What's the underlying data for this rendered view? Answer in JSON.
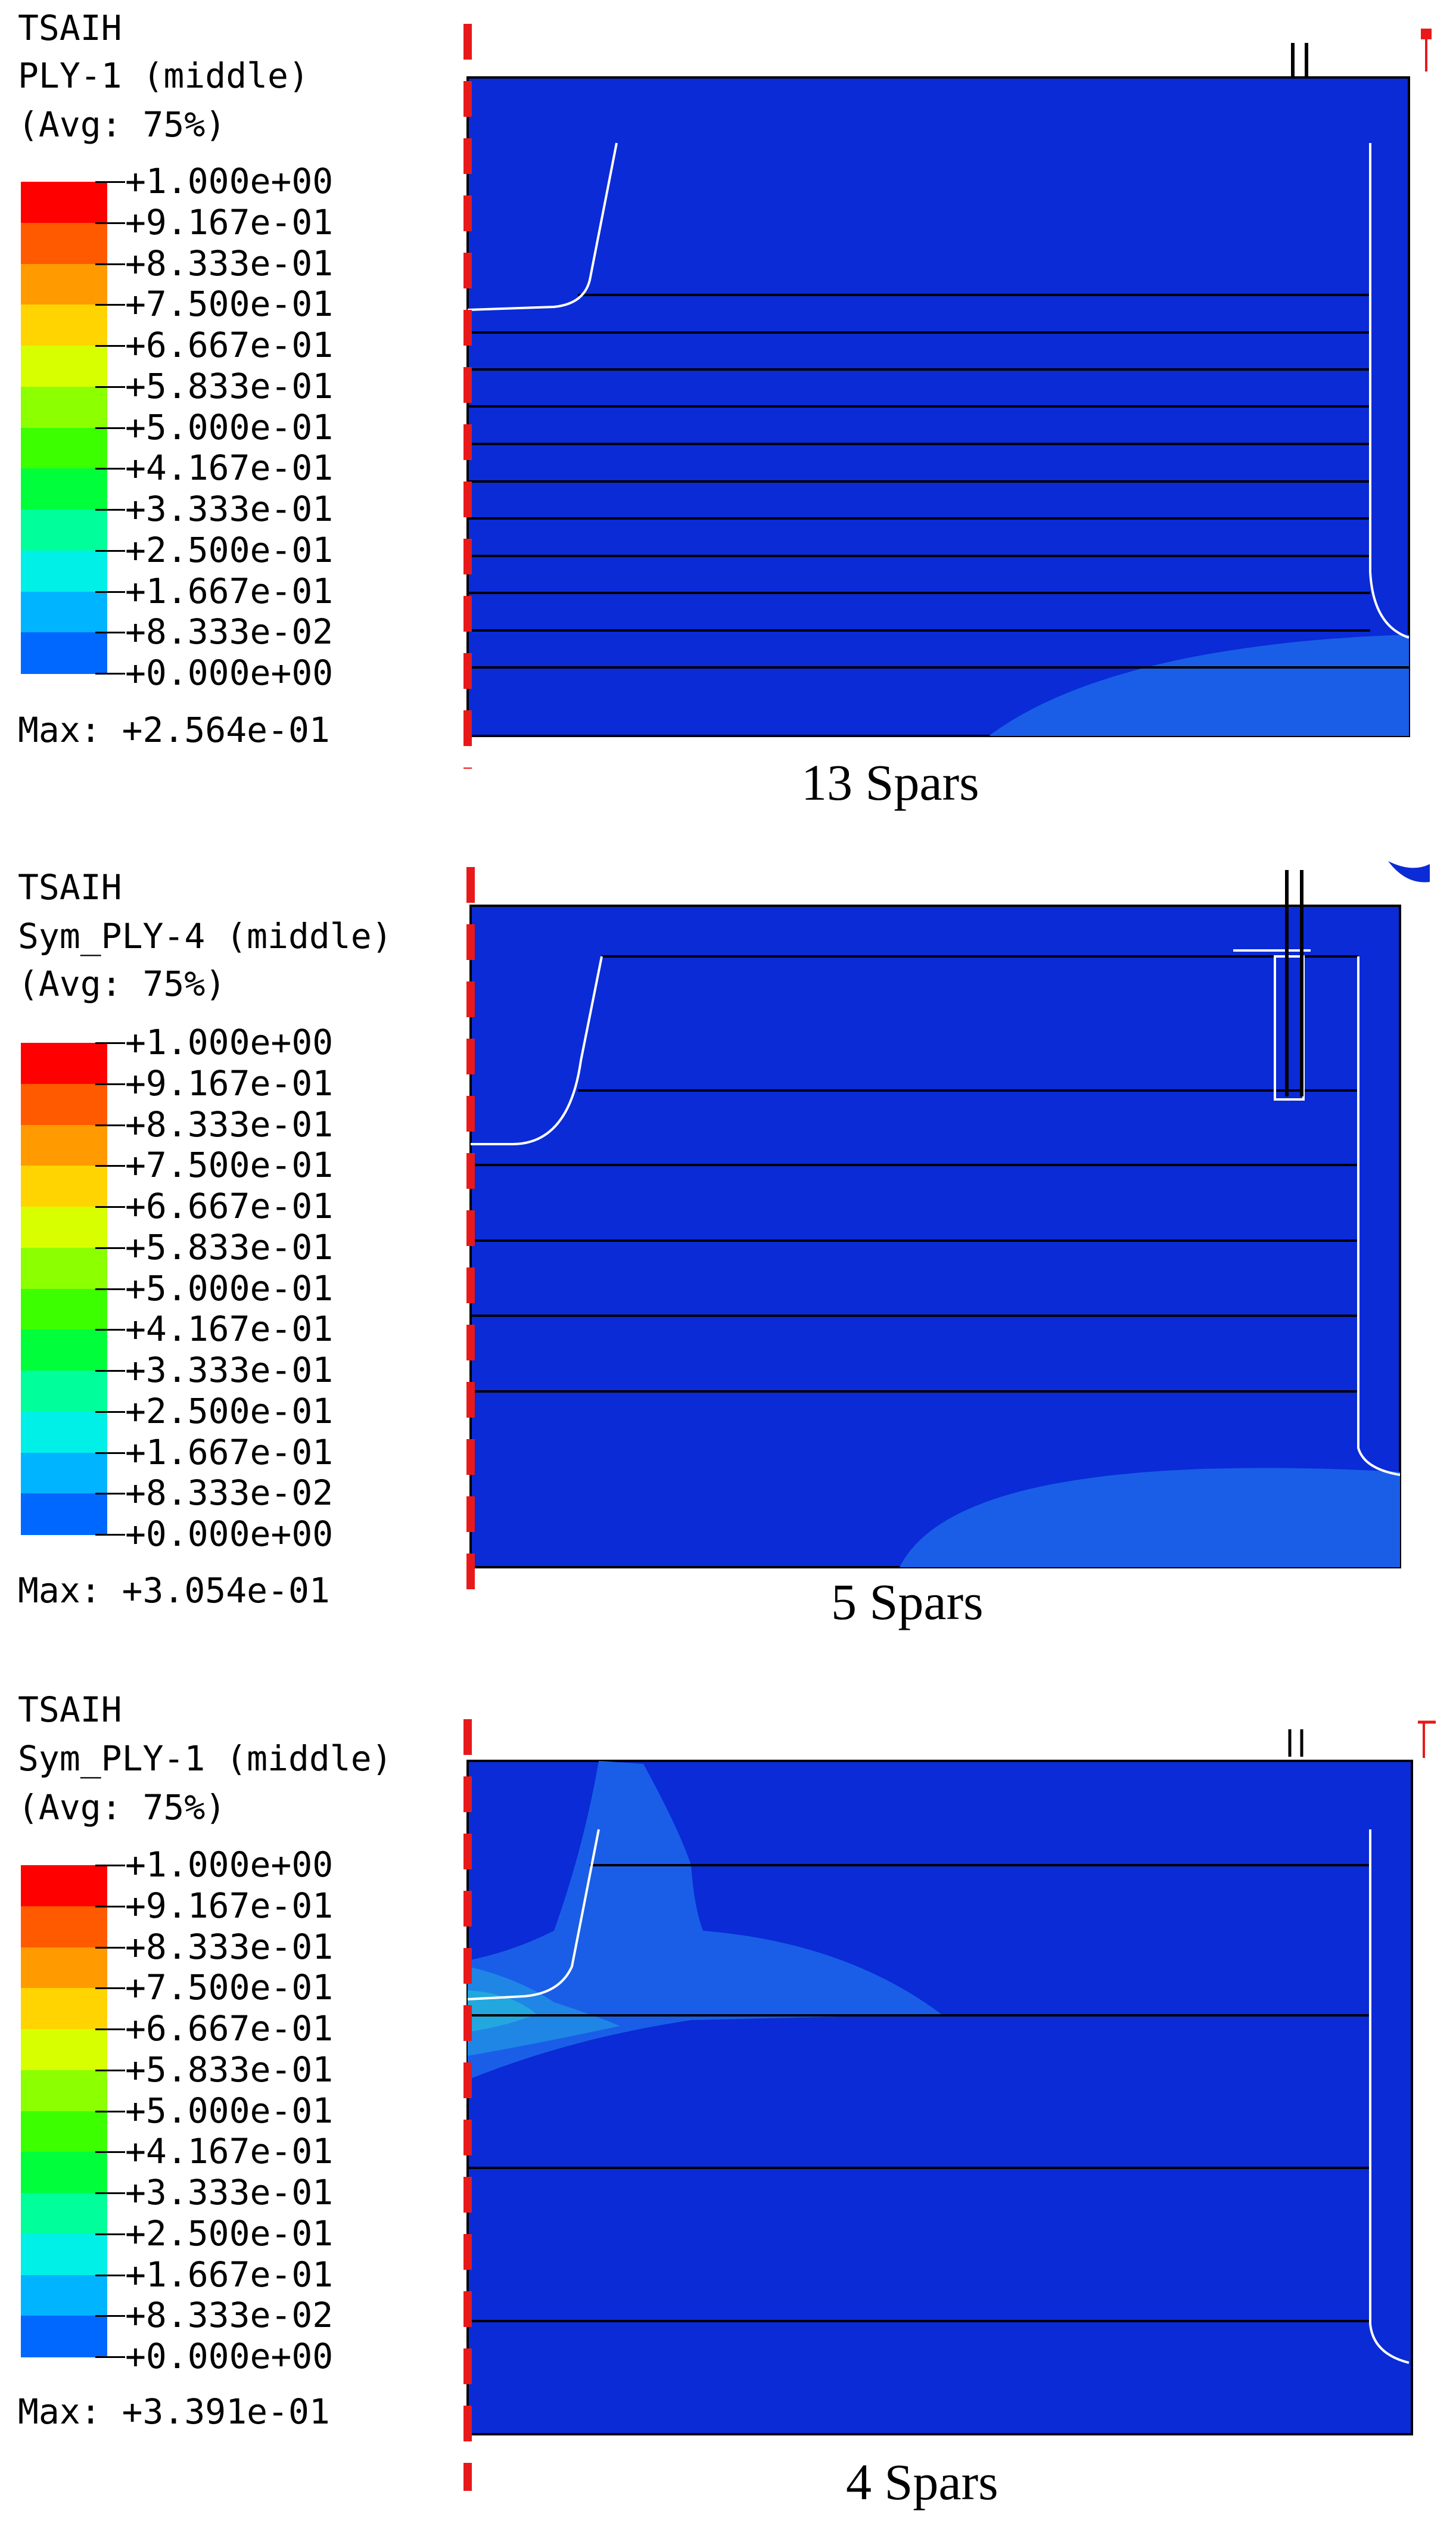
{
  "colors": {
    "background_blue": "#0a2bd6",
    "contour_light": "#1a5ee8",
    "contour_lighter": "#1f86e6",
    "contour_cyan": "#22a8df",
    "outline": "#000000",
    "symmetry_line": "#e8191a"
  },
  "legend_scale": [
    {
      "label": "+1.000e+00",
      "color": "#ff0000"
    },
    {
      "label": "+9.167e-01",
      "color": "#ff5a00"
    },
    {
      "label": "+8.333e-01",
      "color": "#ff9a00"
    },
    {
      "label": "+7.500e-01",
      "color": "#ffd400"
    },
    {
      "label": "+6.667e-01",
      "color": "#d8ff00"
    },
    {
      "label": "+5.833e-01",
      "color": "#8cff00"
    },
    {
      "label": "+5.000e-01",
      "color": "#3cff00"
    },
    {
      "label": "+4.167e-01",
      "color": "#00ff3a"
    },
    {
      "label": "+3.333e-01",
      "color": "#00ff9a"
    },
    {
      "label": "+2.500e-01",
      "color": "#00f0e8"
    },
    {
      "label": "+1.667e-01",
      "color": "#00b4ff"
    },
    {
      "label": "+8.333e-02",
      "color": "#0068ff"
    },
    {
      "label": "+0.000e+00",
      "color": "#0a2bd6"
    }
  ],
  "panels": [
    {
      "field": "TSAIH",
      "ply": "PLY-1 (middle)",
      "averaging": "(Avg: 75%)",
      "max": "Max: +2.564e-01",
      "caption": "13 Spars",
      "spar_count": 13
    },
    {
      "field": "TSAIH",
      "ply": "Sym_PLY-4 (middle)",
      "averaging": "(Avg: 75%)",
      "max": "Max: +3.054e-01",
      "caption": "5 Spars",
      "spar_count": 5
    },
    {
      "field": "TSAIH",
      "ply": "Sym_PLY-1 (middle)",
      "averaging": "(Avg: 75%)",
      "max": "Max: +3.391e-01",
      "caption": "4 Spars",
      "spar_count": 4
    }
  ]
}
